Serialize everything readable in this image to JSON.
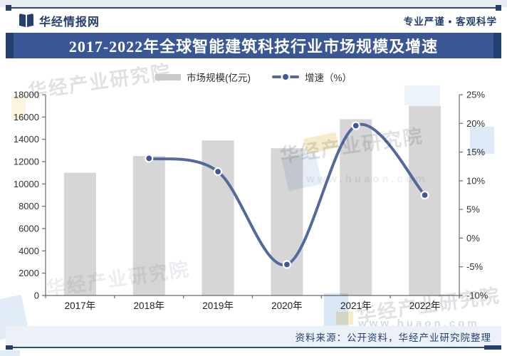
{
  "header": {
    "brand": "华经情报网",
    "slogan": "专业严谨 • 客观科学",
    "title": "2017-2022年全球智能建筑科技行业市场规模及增速"
  },
  "legend": {
    "bar_label": "市场规模(亿元)",
    "line_label": "增速（%）"
  },
  "chart_data": {
    "type": "bar+line",
    "categories": [
      "2017年",
      "2018年",
      "2019年",
      "2020年",
      "2021年",
      "2022年"
    ],
    "series": [
      {
        "name": "市场规模(亿元)",
        "type": "bar",
        "axis": "left",
        "values": [
          11000,
          12500,
          13900,
          13200,
          15800,
          17000
        ],
        "color": "#d6d6d6"
      },
      {
        "name": "增速（%）",
        "type": "line",
        "axis": "right",
        "values": [
          null,
          13.9,
          11.6,
          -4.6,
          19.6,
          7.5
        ],
        "color": "#54699b",
        "marker_color": "#3d5a96"
      }
    ],
    "left_axis": {
      "min": 0,
      "max": 18000,
      "step": 2000,
      "ticks": [
        "0",
        "2000",
        "4000",
        "6000",
        "8000",
        "10000",
        "12000",
        "14000",
        "16000",
        "18000"
      ]
    },
    "right_axis": {
      "min": -10,
      "max": 25,
      "step": 5,
      "ticks": [
        "-10%",
        "-5%",
        "0%",
        "5%",
        "10%",
        "15%",
        "20%",
        "25%"
      ]
    },
    "grid": false,
    "legend_position": "top"
  },
  "footer": {
    "source": "资料来源：公开资料，华经产业研究院整理"
  },
  "watermark": {
    "text": "华经产业研究院",
    "url": "www.huaon.com"
  },
  "colors": {
    "navy": "#26406e",
    "accent": "#3a5795",
    "accent-dark": "#24406e",
    "rule": "#2f4c80",
    "bar": "#d6d6d6",
    "line": "#54699b",
    "marker": "#3d5a96",
    "axis": "#6b6b6b",
    "tick-text": "#333333",
    "footer-bg": "#ecf1f7"
  }
}
